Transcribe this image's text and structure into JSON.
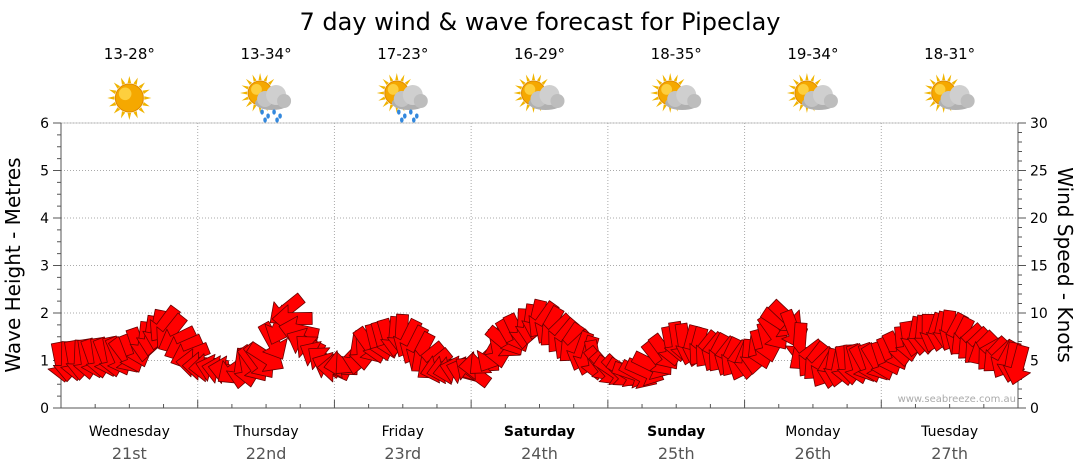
{
  "chart_data": {
    "type": "line",
    "title": "7 day wind & wave forecast for Pipeclay",
    "ylabel_left": "Wave Height - Metres",
    "ylabel_right": "Wind Speed - Knots",
    "ylim_left": [
      0,
      6
    ],
    "ylim_right": [
      0,
      30
    ],
    "yticks_left": [
      "0",
      "1",
      "2",
      "3",
      "4",
      "5",
      "6"
    ],
    "yticks_right": [
      "0",
      "5",
      "10",
      "15",
      "20",
      "25",
      "30"
    ],
    "days": [
      {
        "name": "Wednesday",
        "date": "21st",
        "temp": "13-28°",
        "icon": "sun-icon",
        "bold": false
      },
      {
        "name": "Thursday",
        "date": "22nd",
        "temp": "13-34°",
        "icon": "sun-cloud-rain-icon",
        "bold": false
      },
      {
        "name": "Friday",
        "date": "23rd",
        "temp": "17-23°",
        "icon": "sun-cloud-rain-icon",
        "bold": false
      },
      {
        "name": "Saturday",
        "date": "24th",
        "temp": "16-29°",
        "icon": "sun-cloud-icon",
        "bold": true
      },
      {
        "name": "Sunday",
        "date": "25th",
        "temp": "18-35°",
        "icon": "sun-cloud-icon",
        "bold": true
      },
      {
        "name": "Monday",
        "date": "26th",
        "temp": "19-34°",
        "icon": "sun-cloud-icon",
        "bold": false
      },
      {
        "name": "Tuesday",
        "date": "27th",
        "temp": "18-31°",
        "icon": "sun-cloud-icon",
        "bold": false
      }
    ],
    "series": [
      {
        "name": "Wind speed (knots)",
        "x_days": [
          0,
          0.25,
          0.5,
          0.75,
          1,
          1.2,
          1.35,
          1.5,
          1.65,
          1.8,
          2,
          2.25,
          2.5,
          2.75,
          3,
          3.25,
          3.5,
          3.75,
          4,
          4.25,
          4.5,
          4.75,
          5,
          5.15,
          5.3,
          5.45,
          5.6,
          5.75,
          6,
          6.25,
          6.5,
          6.75,
          7
        ],
        "values": [
          4.8,
          5.2,
          5.5,
          8.8,
          4.5,
          3.9,
          4.2,
          5.2,
          10.5,
          6.5,
          4.0,
          6.5,
          7.8,
          4.2,
          3.8,
          7.0,
          9.5,
          6.5,
          4.0,
          3.5,
          7.0,
          6.0,
          4.8,
          6.5,
          9.8,
          5.5,
          4.0,
          4.5,
          4.8,
          7.5,
          8.2,
          6.0,
          4.5
        ]
      },
      {
        "name": "Wind direction (degrees, arrow points)",
        "x_days": [
          0,
          0.25,
          0.5,
          0.75,
          1,
          1.2,
          1.35,
          1.5,
          1.65,
          1.8,
          2,
          2.25,
          2.5,
          2.75,
          3,
          3.25,
          3.5,
          3.75,
          4,
          4.25,
          4.5,
          4.75,
          5,
          5.15,
          5.3,
          5.45,
          5.6,
          5.75,
          6,
          6.25,
          6.5,
          6.75,
          7
        ],
        "values": [
          90,
          80,
          60,
          120,
          180,
          200,
          80,
          30,
          150,
          220,
          200,
          60,
          100,
          150,
          210,
          45,
          120,
          135,
          40,
          20,
          80,
          130,
          110,
          70,
          30,
          140,
          120,
          80,
          60,
          90,
          110,
          150,
          100
        ]
      }
    ],
    "watermark": "www.seabreeze.com.au",
    "colors": {
      "arrow": "#ff0000",
      "arrow_stroke": "#6a0000",
      "grid": "#aaaaaa",
      "sun": "#f5a800",
      "cloud": "#b0b0b0",
      "rain": "#3388dd"
    }
  }
}
